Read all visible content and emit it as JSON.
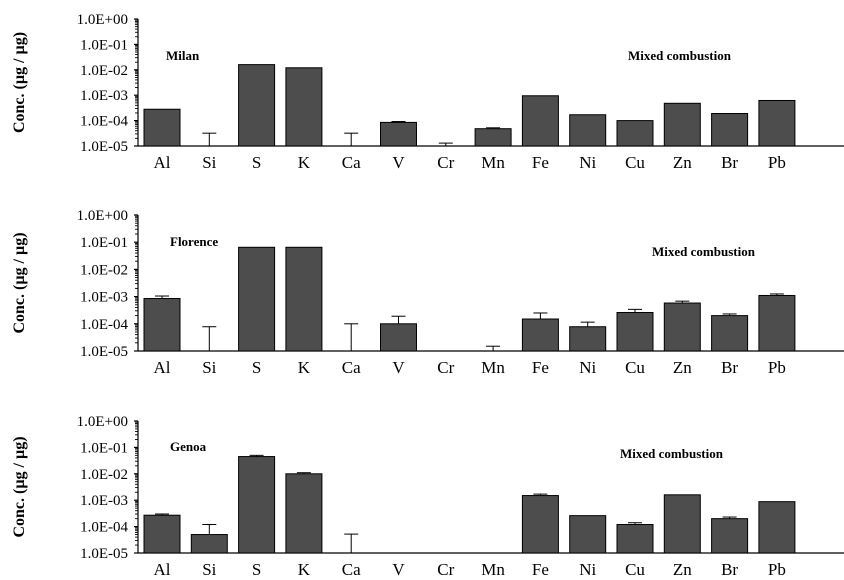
{
  "chart_data": [
    {
      "type": "bar",
      "title": "Milan",
      "annotation": "Mixed combustion",
      "ylabel": "Conc. (µg / µg)",
      "yscale": "log",
      "ylim": [
        1e-05,
        1
      ],
      "yticks": [
        "1.0E-05",
        "1.0E-04",
        "1.0E-03",
        "1.0E-02",
        "1.0E-01",
        "1.0E+00"
      ],
      "categories": [
        "Al",
        "Si",
        "S",
        "K",
        "Ca",
        "V",
        "Cr",
        "Mn",
        "Fe",
        "Ni",
        "Cu",
        "Zn",
        "Br",
        "Pb"
      ],
      "values": [
        0.00028,
        1e-05,
        0.016,
        0.012,
        1e-05,
        8.5e-05,
        1e-05,
        4.8e-05,
        0.00095,
        0.00017,
        0.0001,
        0.00048,
        0.00019,
        0.00062
      ],
      "error_upper": [
        null,
        3.2e-05,
        null,
        null,
        3.2e-05,
        9.2e-05,
        1.3e-05,
        5.2e-05,
        null,
        null,
        null,
        null,
        null,
        null
      ],
      "bar_color": "#4d4d4d"
    },
    {
      "type": "bar",
      "title": "Florence",
      "annotation": "Mixed combustion",
      "ylabel": "Conc. (µg / µg)",
      "yscale": "log",
      "ylim": [
        1e-05,
        1
      ],
      "yticks": [
        "1.0E-05",
        "1.0E-04",
        "1.0E-03",
        "1.0E-02",
        "1.0E-01",
        "1.0E+00"
      ],
      "categories": [
        "Al",
        "Si",
        "S",
        "K",
        "Ca",
        "V",
        "Cr",
        "Mn",
        "Fe",
        "Ni",
        "Cu",
        "Zn",
        "Br",
        "Pb"
      ],
      "values": [
        0.00085,
        1e-05,
        0.065,
        0.065,
        1e-05,
        0.0001,
        1e-05,
        1e-05,
        0.00015,
        7.8e-05,
        0.00026,
        0.00058,
        0.0002,
        0.0011
      ],
      "error_upper": [
        0.00105,
        7.8e-05,
        null,
        null,
        0.0001,
        0.00019,
        null,
        1.5e-05,
        0.00025,
        0.000115,
        0.00034,
        0.00068,
        0.00023,
        0.00125
      ],
      "bar_color": "#4d4d4d"
    },
    {
      "type": "bar",
      "title": "Genoa",
      "annotation": "Mixed combustion",
      "ylabel": "Conc. (µg / µg)",
      "yscale": "log",
      "ylim": [
        1e-05,
        1
      ],
      "yticks": [
        "1.0E-05",
        "1.0E-04",
        "1.0E-03",
        "1.0E-02",
        "1.0E-01",
        "1.0E+00"
      ],
      "categories": [
        "Al",
        "Si",
        "S",
        "K",
        "Ca",
        "V",
        "Cr",
        "Mn",
        "Fe",
        "Ni",
        "Cu",
        "Zn",
        "Br",
        "Pb"
      ],
      "values": [
        0.00027,
        5e-05,
        0.045,
        0.01,
        1e-05,
        1e-05,
        1e-05,
        1e-05,
        0.0015,
        0.00026,
        0.00012,
        0.0016,
        0.0002,
        0.00088
      ],
      "error_upper": [
        0.0003,
        0.00012,
        0.05,
        0.011,
        5.2e-05,
        null,
        null,
        null,
        0.0017,
        null,
        0.00014,
        null,
        0.00023,
        null
      ],
      "bar_color": "#4d4d4d"
    }
  ]
}
